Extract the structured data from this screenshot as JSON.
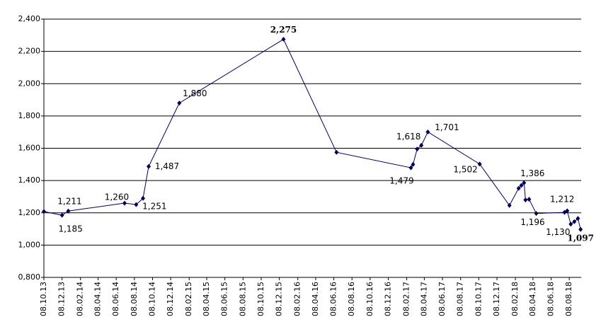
{
  "chart_data": {
    "type": "line",
    "x": [
      "2013-10-08",
      "2013-12-08",
      "2013-12-29",
      "2014-07-06",
      "2014-08-14",
      "2014-09-06",
      "2014-09-25",
      "2015-01-06",
      "2015-12-22",
      "2016-06-17",
      "2017-02-22",
      "2017-03-01",
      "2017-03-15",
      "2017-03-29",
      "2017-04-20",
      "2017-10-11",
      "2018-01-19",
      "2018-02-19",
      "2018-02-28",
      "2018-03-09",
      "2018-03-14",
      "2018-03-26",
      "2018-04-19",
      "2018-07-23",
      "2018-08-01",
      "2018-08-13",
      "2018-08-25",
      "2018-09-06",
      "2018-09-15"
    ],
    "values": [
      1208,
      1185,
      1211,
      1260,
      1251,
      1290,
      1487,
      1880,
      2275,
      1575,
      1479,
      1500,
      1595,
      1618,
      1701,
      1502,
      1246,
      1352,
      1370,
      1386,
      1280,
      1284,
      1196,
      1203,
      1212,
      1130,
      1145,
      1165,
      1097
    ],
    "value_labels": [
      null,
      "1,185",
      "1,211",
      "1,260",
      "1,251",
      null,
      "1,487",
      "1,880",
      "2,275",
      null,
      "1,479",
      null,
      null,
      "1,618",
      "1,701",
      "1,502",
      null,
      null,
      null,
      "1,386",
      null,
      null,
      "1,196",
      null,
      "1,212",
      "1,130",
      null,
      null,
      "1,097"
    ],
    "color": "#00005a",
    "xlim": [
      "2013-10-08",
      "2018-09-17"
    ],
    "xticks": [
      {
        "value": "2013-10-08",
        "label": "08.10.13"
      },
      {
        "value": "2013-12-08",
        "label": "08.12.13"
      },
      {
        "value": "2014-02-08",
        "label": "08.02.14"
      },
      {
        "value": "2014-04-08",
        "label": "08.04.14"
      },
      {
        "value": "2014-06-08",
        "label": "08.06.14"
      },
      {
        "value": "2014-08-08",
        "label": "08.08.14"
      },
      {
        "value": "2014-10-08",
        "label": "08.10.14"
      },
      {
        "value": "2014-12-08",
        "label": "08.12.14"
      },
      {
        "value": "2015-02-08",
        "label": "08.02.15"
      },
      {
        "value": "2015-04-08",
        "label": "08.04.15"
      },
      {
        "value": "2015-06-08",
        "label": "08.06.15"
      },
      {
        "value": "2015-08-08",
        "label": "08.08.15"
      },
      {
        "value": "2015-10-08",
        "label": "08.10.15"
      },
      {
        "value": "2015-12-08",
        "label": "08.12.15"
      },
      {
        "value": "2016-02-08",
        "label": "08.02.16"
      },
      {
        "value": "2016-04-08",
        "label": "08.04.16"
      },
      {
        "value": "2016-06-08",
        "label": "08.06.16"
      },
      {
        "value": "2016-08-08",
        "label": "08.08.16"
      },
      {
        "value": "2016-10-08",
        "label": "08.10.16"
      },
      {
        "value": "2016-12-08",
        "label": "08.12.16"
      },
      {
        "value": "2017-02-08",
        "label": "08.02.17"
      },
      {
        "value": "2017-04-08",
        "label": "08.04.17"
      },
      {
        "value": "2017-06-08",
        "label": "08.06.17"
      },
      {
        "value": "2017-08-08",
        "label": "08.08.17"
      },
      {
        "value": "2017-10-08",
        "label": "08.10.17"
      },
      {
        "value": "2017-12-08",
        "label": "08.12.17"
      },
      {
        "value": "2018-02-08",
        "label": "08.02.18"
      },
      {
        "value": "2018-04-08",
        "label": "08.04.18"
      },
      {
        "value": "2018-06-08",
        "label": "08.06.18"
      },
      {
        "value": "2018-08-08",
        "label": "08.08.18"
      }
    ],
    "ylim": [
      800,
      2400
    ],
    "yticks": [
      {
        "value": 800,
        "label": "0,800"
      },
      {
        "value": 1000,
        "label": "1,000"
      },
      {
        "value": 1200,
        "label": "1,200"
      },
      {
        "value": 1400,
        "label": "1,400"
      },
      {
        "value": 1600,
        "label": "1,600"
      },
      {
        "value": 1800,
        "label": "1,800"
      },
      {
        "value": 2000,
        "label": "2,000"
      },
      {
        "value": 2200,
        "label": "2,200"
      },
      {
        "value": 2400,
        "label": "2,400"
      }
    ],
    "grid": true
  }
}
